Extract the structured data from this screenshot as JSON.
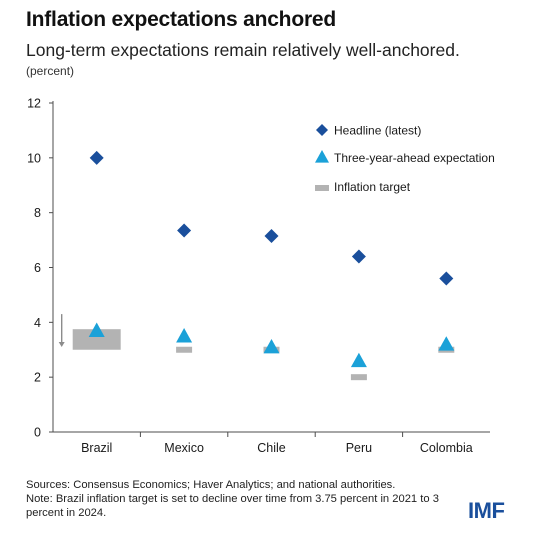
{
  "header": {
    "title": "Inflation expectations anchored",
    "subtitle": "Long-term expectations remain relatively well-anchored.",
    "units": "(percent)"
  },
  "footer": {
    "sources": "Sources: Consensus Economics; Haver Analytics; and national authorities.",
    "note": "Note: Brazil inflation target is set to decline over time from 3.75 percent in 2021 to 3 percent in 2024.",
    "logo": "IMF"
  },
  "colors": {
    "headline": "#1a4f9c",
    "expectation": "#1ba1d8",
    "target": "#b3b3b3",
    "axis": "#4d4d4d",
    "arrow": "#8c8c8c"
  },
  "chart_data": {
    "type": "scatter",
    "categories": [
      "Brazil",
      "Mexico",
      "Chile",
      "Peru",
      "Colombia"
    ],
    "ylim": [
      0,
      12
    ],
    "yticks": [
      0,
      2,
      4,
      6,
      8,
      10,
      12
    ],
    "grid": false,
    "legend_position": "top-right",
    "series": [
      {
        "name": "Headline (latest)",
        "marker": "diamond",
        "values": [
          10.0,
          7.35,
          7.15,
          6.4,
          5.6
        ]
      },
      {
        "name": "Three-year-ahead expectation",
        "marker": "triangle",
        "values": [
          3.7,
          3.5,
          3.1,
          2.6,
          3.2
        ]
      },
      {
        "name": "Inflation target",
        "marker": "bar",
        "values": [
          [
            3.0,
            3.75
          ],
          3.0,
          3.0,
          2.0,
          3.0
        ]
      }
    ],
    "annotations": [
      {
        "category": "Brazil",
        "type": "down-arrow",
        "from": 4.3,
        "to": 3.1
      }
    ]
  }
}
